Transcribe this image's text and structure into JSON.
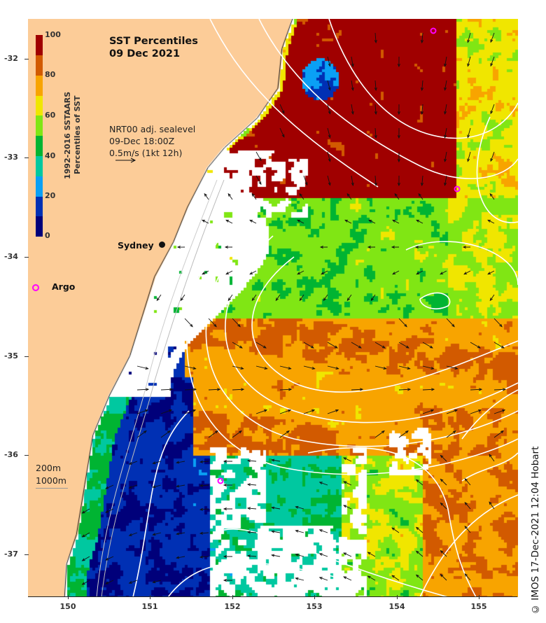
{
  "title": {
    "line1": "SST Percentiles",
    "line2": "09 Dec 2021"
  },
  "colorbar": {
    "title_line1": "1992-2016 SSTAARS",
    "title_line2": "Percentiles of SST",
    "labels": [
      "0",
      "20",
      "40",
      "60",
      "80",
      "100"
    ],
    "colors": [
      "#00007a",
      "#0030b4",
      "#0aa0f5",
      "#00c8a0",
      "#00b432",
      "#80e614",
      "#f0e600",
      "#f8a400",
      "#d25a00",
      "#a00000"
    ]
  },
  "sealevel": {
    "line1": "NRT00 adj. sealevel",
    "line2": "09-Dec 18:00Z",
    "line3": "0.5m/s (1kt 12h)"
  },
  "places": {
    "sydney": "Sydney",
    "argo": "Argo"
  },
  "depth_legend": {
    "shallow": "200m",
    "deep": "1000m"
  },
  "axes": {
    "lat_ticks": [
      "-32",
      "-33",
      "-34",
      "-35",
      "-36",
      "-37"
    ],
    "lon_ticks": [
      "150",
      "151",
      "152",
      "153",
      "154",
      "155"
    ]
  },
  "copyright": "© IMOS 17-Dec-2021 12:04 Hobart",
  "colors": {
    "land": "#fccc98",
    "argo": "#ff00ff",
    "contour": "#ffffff"
  }
}
